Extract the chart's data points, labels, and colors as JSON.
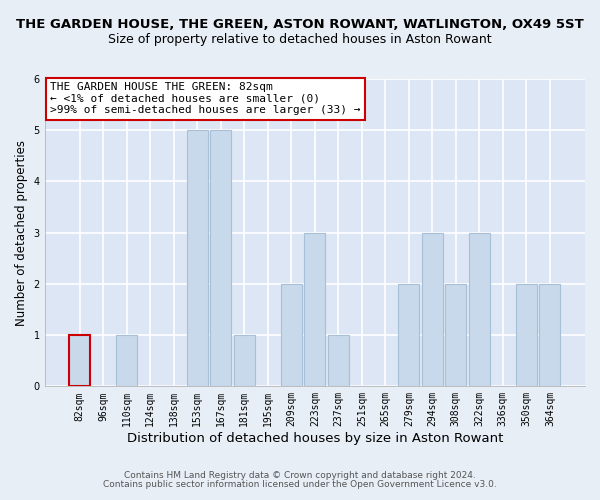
{
  "title": "THE GARDEN HOUSE, THE GREEN, ASTON ROWANT, WATLINGTON, OX49 5ST",
  "subtitle": "Size of property relative to detached houses in Aston Rowant",
  "xlabel": "Distribution of detached houses by size in Aston Rowant",
  "ylabel": "Number of detached properties",
  "bar_labels": [
    "82sqm",
    "96sqm",
    "110sqm",
    "124sqm",
    "138sqm",
    "153sqm",
    "167sqm",
    "181sqm",
    "195sqm",
    "209sqm",
    "223sqm",
    "237sqm",
    "251sqm",
    "265sqm",
    "279sqm",
    "294sqm",
    "308sqm",
    "322sqm",
    "336sqm",
    "350sqm",
    "364sqm"
  ],
  "bar_values": [
    1,
    0,
    1,
    0,
    0,
    5,
    5,
    1,
    0,
    2,
    3,
    1,
    0,
    0,
    2,
    3,
    2,
    3,
    0,
    2,
    2
  ],
  "bar_color": "#c9d9ec",
  "bar_edge_color": "#a8bfd8",
  "highlight_bar_index": 0,
  "highlight_edge_color": "#cc0000",
  "annotation_text": "THE GARDEN HOUSE THE GREEN: 82sqm\n← <1% of detached houses are smaller (0)\n>99% of semi-detached houses are larger (33) →",
  "annotation_box_color": "white",
  "annotation_box_edge_color": "#cc0000",
  "ylim": [
    0,
    6
  ],
  "yticks": [
    0,
    1,
    2,
    3,
    4,
    5,
    6
  ],
  "footnote1": "Contains HM Land Registry data © Crown copyright and database right 2024.",
  "footnote2": "Contains public sector information licensed under the Open Government Licence v3.0.",
  "background_color": "#e8eef6",
  "plot_background": "#dce6f4",
  "grid_color": "#ffffff",
  "title_fontsize": 9.5,
  "subtitle_fontsize": 9,
  "xlabel_fontsize": 9.5,
  "ylabel_fontsize": 8.5,
  "tick_fontsize": 7,
  "annotation_fontsize": 8,
  "footnote_fontsize": 6.5
}
